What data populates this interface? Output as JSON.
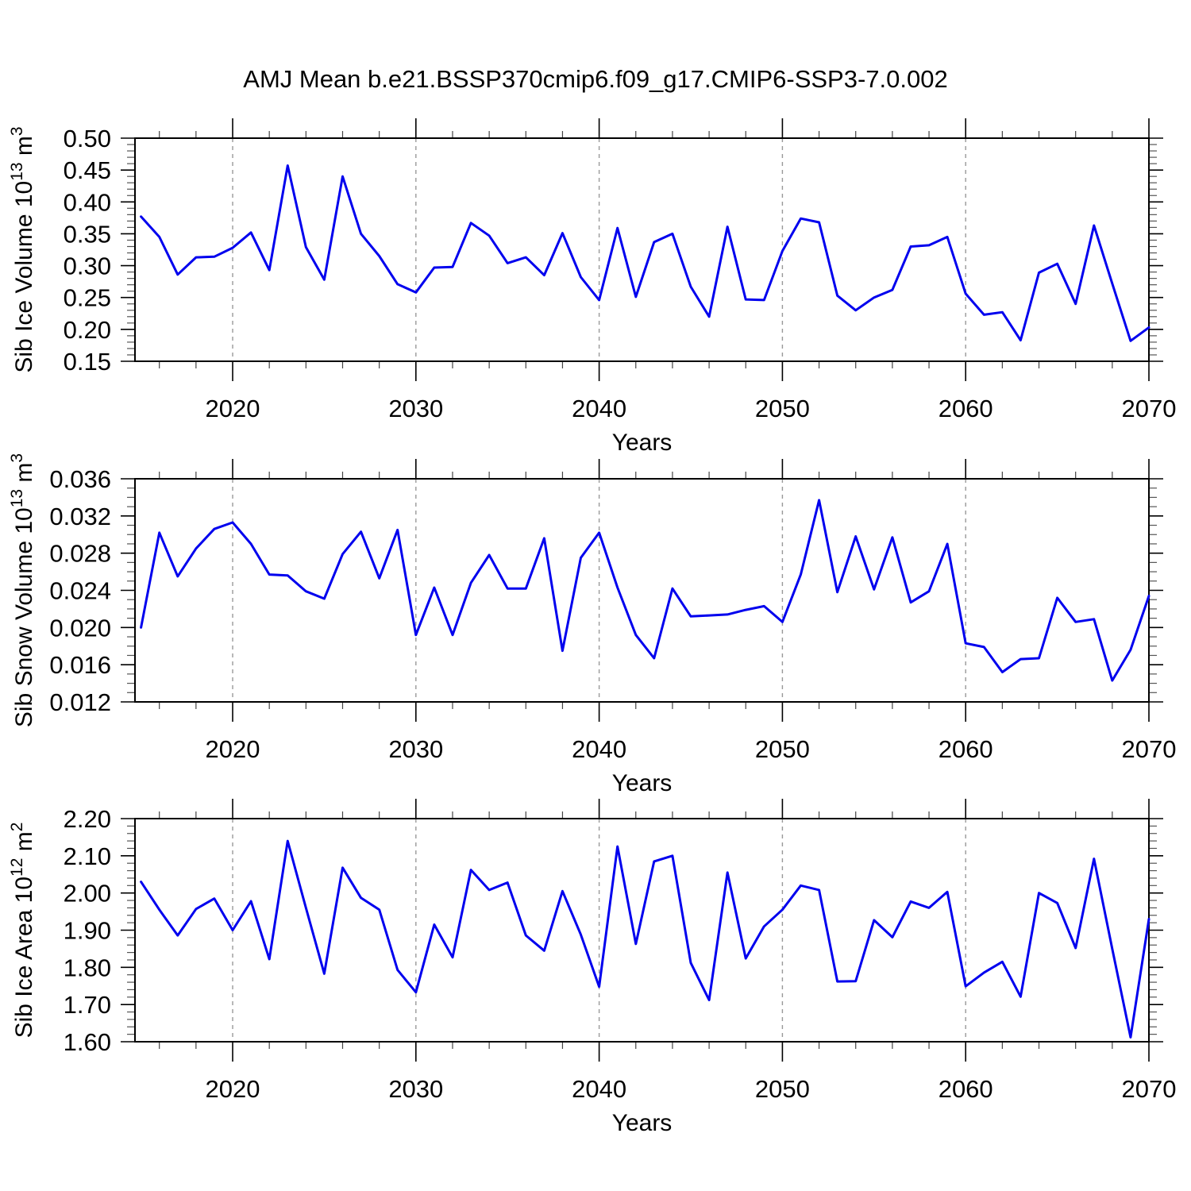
{
  "title": "AMJ Mean b.e21.BSSP370cmip6.f09_g17.CMIP6-SSP3-7.0.002",
  "background": "#ffffff",
  "axis_color": "#000000",
  "grid_color": "#999999",
  "line_color": "#0000EE",
  "x_range": [
    2014.67,
    2070
  ],
  "years": [
    2015,
    2016,
    2017,
    2018,
    2019,
    2020,
    2021,
    2022,
    2023,
    2024,
    2025,
    2026,
    2027,
    2028,
    2029,
    2030,
    2031,
    2032,
    2033,
    2034,
    2035,
    2036,
    2037,
    2038,
    2039,
    2040,
    2041,
    2042,
    2043,
    2044,
    2045,
    2046,
    2047,
    2048,
    2049,
    2050,
    2051,
    2052,
    2053,
    2054,
    2055,
    2056,
    2057,
    2058,
    2059,
    2060,
    2061,
    2062,
    2063,
    2064,
    2065,
    2066,
    2067,
    2068,
    2069,
    2070
  ],
  "chart_data": [
    {
      "type": "line",
      "panel": "ice-volume",
      "xlabel": "Years",
      "ylabel": "Sib Ice Volume 10^13 m^3",
      "ylabel_parts": [
        "Sib Ice Volume 10",
        "13",
        " m",
        "3"
      ],
      "ylim": [
        0.15,
        0.5
      ],
      "y_major_step": 0.05,
      "y_minor_step": 0.01,
      "y_tick_labels": [
        "0.15",
        "0.20",
        "0.25",
        "0.30",
        "0.35",
        "0.40",
        "0.45",
        "0.50"
      ],
      "x_tick_labels": [
        "2020",
        "2030",
        "2040",
        "2050",
        "2060",
        "2070"
      ],
      "grid": "dashed-vertical-decades",
      "legend": "none",
      "values": [
        0.377,
        0.345,
        0.286,
        0.313,
        0.314,
        0.328,
        0.352,
        0.293,
        0.457,
        0.329,
        0.278,
        0.44,
        0.35,
        0.315,
        0.271,
        0.258,
        0.297,
        0.298,
        0.367,
        0.347,
        0.304,
        0.313,
        0.285,
        0.351,
        0.282,
        0.246,
        0.359,
        0.251,
        0.337,
        0.35,
        0.267,
        0.22,
        0.361,
        0.247,
        0.246,
        0.323,
        0.374,
        0.368,
        0.253,
        0.23,
        0.25,
        0.262,
        0.33,
        0.332,
        0.345,
        0.256,
        0.223,
        0.227,
        0.183,
        0.289,
        0.303,
        0.24,
        0.363,
        0.272,
        0.182,
        0.203
      ]
    },
    {
      "type": "line",
      "panel": "snow-volume",
      "xlabel": "Years",
      "ylabel": "Sib Snow Volume 10^13 m^3",
      "ylabel_parts": [
        "Sib Snow Volume 10",
        "13",
        " m",
        "3"
      ],
      "ylim": [
        0.012,
        0.036
      ],
      "y_major_step": 0.004,
      "y_minor_step": 0.001,
      "y_tick_labels": [
        "0.012",
        "0.016",
        "0.020",
        "0.024",
        "0.028",
        "0.032",
        "0.036"
      ],
      "x_tick_labels": [
        "2020",
        "2030",
        "2040",
        "2050",
        "2060",
        "2070"
      ],
      "grid": "dashed-vertical-decades",
      "legend": "none",
      "values": [
        0.02,
        0.0302,
        0.0255,
        0.0285,
        0.0306,
        0.0313,
        0.029,
        0.0257,
        0.0256,
        0.0239,
        0.0231,
        0.0279,
        0.0303,
        0.0253,
        0.0305,
        0.0192,
        0.0243,
        0.0192,
        0.0248,
        0.0278,
        0.0242,
        0.0242,
        0.0296,
        0.0175,
        0.0275,
        0.0302,
        0.0243,
        0.0192,
        0.0167,
        0.0242,
        0.0212,
        0.0213,
        0.0214,
        0.0219,
        0.0223,
        0.0206,
        0.0257,
        0.0337,
        0.0238,
        0.0298,
        0.0241,
        0.0297,
        0.0227,
        0.0239,
        0.029,
        0.0183,
        0.0179,
        0.0152,
        0.0166,
        0.0167,
        0.0232,
        0.0206,
        0.0209,
        0.0143,
        0.0176,
        0.0234
      ]
    },
    {
      "type": "line",
      "panel": "ice-area",
      "xlabel": "Years",
      "ylabel": "Sib Ice Area 10^12 m^2",
      "ylabel_parts": [
        "Sib Ice Area 10",
        "12",
        " m",
        "2"
      ],
      "ylim": [
        1.6,
        2.2
      ],
      "y_major_step": 0.1,
      "y_minor_step": 0.02,
      "y_tick_labels": [
        "1.60",
        "1.70",
        "1.80",
        "1.90",
        "2.00",
        "2.10",
        "2.20"
      ],
      "x_tick_labels": [
        "2020",
        "2030",
        "2040",
        "2050",
        "2060",
        "2070"
      ],
      "grid": "dashed-vertical-decades",
      "legend": "none",
      "values": [
        2.03,
        1.955,
        1.886,
        1.957,
        1.985,
        1.9,
        1.978,
        1.822,
        2.14,
        1.96,
        1.783,
        2.068,
        1.987,
        1.955,
        1.793,
        1.733,
        1.915,
        1.827,
        2.062,
        2.008,
        2.028,
        1.886,
        1.845,
        2.005,
        1.888,
        1.748,
        2.125,
        1.863,
        2.085,
        2.1,
        1.812,
        1.712,
        2.055,
        1.824,
        1.91,
        1.955,
        2.02,
        2.008,
        1.762,
        1.763,
        1.927,
        1.881,
        1.977,
        1.96,
        2.003,
        1.749,
        1.786,
        1.815,
        1.721,
        2.0,
        1.973,
        1.852,
        2.092,
        1.85,
        1.612,
        1.93
      ]
    }
  ]
}
